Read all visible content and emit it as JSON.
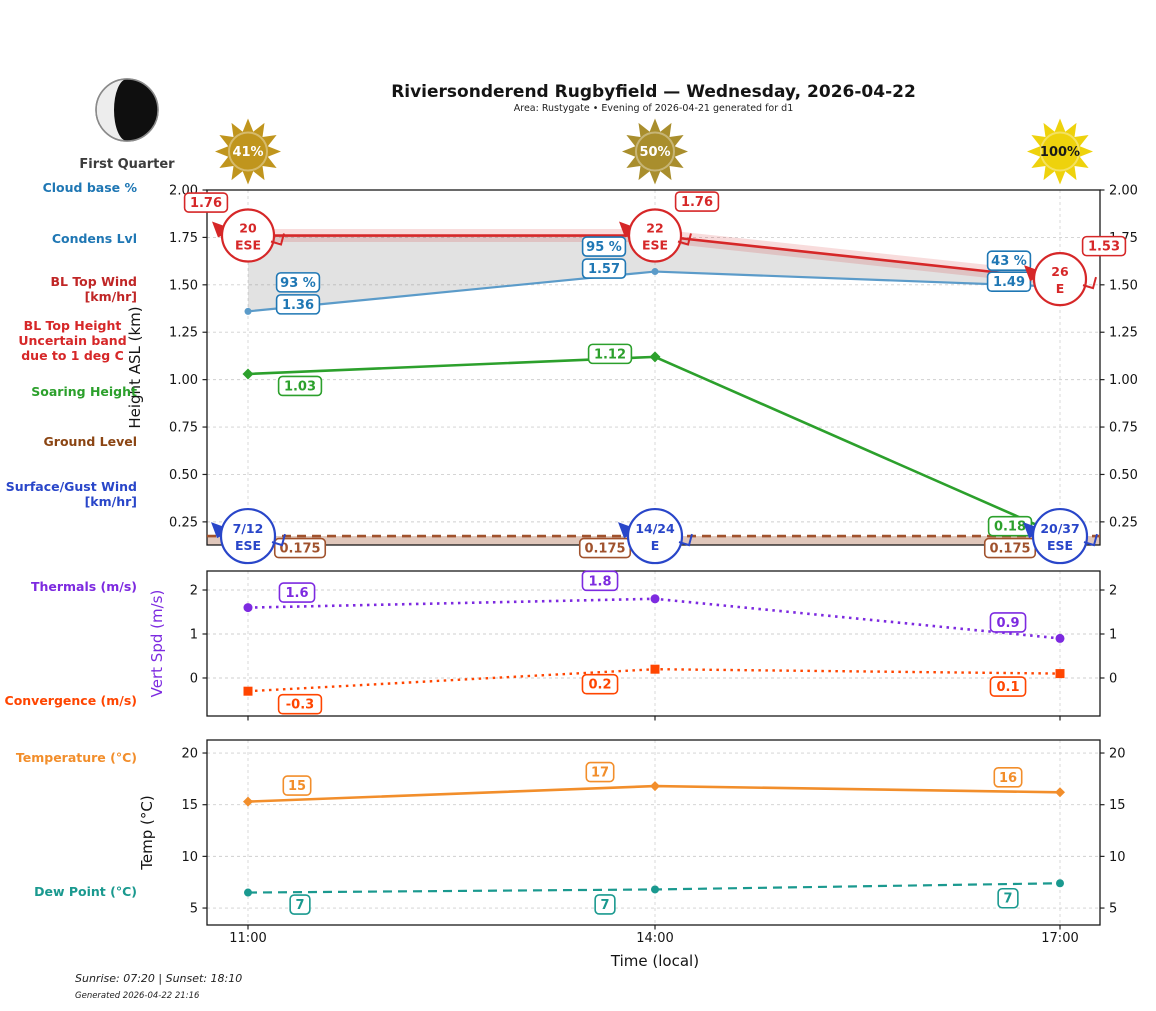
{
  "header": {
    "title": "Riviersonderend Rugbyfield — Wednesday, 2026-04-22",
    "subtitle": "Area: Rustygate • Evening of 2026-04-21 generated for d1"
  },
  "moon": {
    "phase_label": "First Quarter"
  },
  "suns": [
    {
      "percent": "41%",
      "color": "#c0951d",
      "text_color": "#ffffff"
    },
    {
      "percent": "50%",
      "color": "#a98e2d",
      "text_color": "#ffffff"
    },
    {
      "percent": "100%",
      "color": "#eed20c",
      "text_color": "#1a1a1a"
    }
  ],
  "left_labels": [
    {
      "id": "cloud-base",
      "text": "Cloud base %",
      "color": "#1f77b4"
    },
    {
      "id": "condens-lvl",
      "text": "Condens Lvl",
      "color": "#1f77b4"
    },
    {
      "id": "bl-top-wind",
      "text": "BL Top Wind\n[km/hr]",
      "color": "#c02626"
    },
    {
      "id": "bl-top-height",
      "text": "BL Top Height\nUncertain band\ndue to 1 deg C",
      "color": "#d62728"
    },
    {
      "id": "soaring-height",
      "text": "Soaring Height",
      "color": "#2ca02c"
    },
    {
      "id": "ground-level",
      "text": "Ground Level",
      "color": "#8b4513"
    },
    {
      "id": "surface-wind",
      "text": "Surface/Gust Wind\n[km/hr]",
      "color": "#2946c9"
    },
    {
      "id": "thermals",
      "text": "Thermals (m/s)",
      "color": "#7d2ae0"
    },
    {
      "id": "convergence",
      "text": "Convergence (m/s)",
      "color": "#ff4500"
    },
    {
      "id": "temperature",
      "text": "Temperature (°C)",
      "color": "#f28e2b"
    },
    {
      "id": "dew-point",
      "text": "Dew Point (°C)",
      "color": "#1a998f"
    }
  ],
  "time_axis": {
    "ticks": [
      "11:00",
      "14:00",
      "17:00"
    ],
    "label": "Time (local)"
  },
  "footer": {
    "sun_times": "Sunrise: 07:20 | Sunset: 18:10",
    "generated": "Generated 2026-04-22 21:16"
  },
  "chart_data": [
    {
      "type": "line",
      "name": "heights",
      "x": [
        "11:00",
        "14:00",
        "17:00"
      ],
      "ylabel": "Height ASL (km)",
      "ylabel_color": "#141414",
      "ylim": [
        0.128,
        2.0
      ],
      "yticks": [
        0.25,
        0.5,
        0.75,
        1.0,
        1.25,
        1.5,
        1.75,
        2.0
      ],
      "ytick_labels": [
        "0.25",
        "0.50",
        "0.75",
        "1.00",
        "1.25",
        "1.50",
        "1.75",
        "2.00"
      ],
      "grid": true,
      "fill_between": {
        "upper": 0,
        "lower": 1,
        "color": "rgba(125,125,125,0.22)"
      },
      "series": [
        {
          "name": "bl-top-height",
          "color": "#d62728",
          "style": "solid",
          "values": [
            1.76,
            1.76,
            1.53
          ],
          "labels": [
            "1.76",
            "1.76",
            "1.53"
          ],
          "band": true
        },
        {
          "name": "condens-lvl",
          "color": "#1f77b4",
          "line_color": "#5b9bc9",
          "style": "solid",
          "marker": "circle",
          "values": [
            1.36,
            1.57,
            1.49
          ],
          "labels": [
            "1.36",
            "1.57",
            "1.49"
          ],
          "labels2": [
            "93 %",
            "95 %",
            "43 %"
          ]
        },
        {
          "name": "soaring-height",
          "color": "#2ca02c",
          "style": "solid",
          "marker": "diamond",
          "values": [
            1.03,
            1.12,
            0.18
          ],
          "labels": [
            "1.03",
            "1.12",
            "0.18"
          ]
        },
        {
          "name": "ground-level",
          "color": "#a0522d",
          "style": "dashed",
          "values": [
            0.175,
            0.175,
            0.175
          ],
          "labels": [
            "0.175",
            "0.175",
            "0.175"
          ],
          "fill_below": true,
          "full_width": true
        }
      ],
      "wind_markers": {
        "bl": {
          "color": "#d62728",
          "on_series": 0,
          "items": [
            {
              "speed": "20",
              "dir": "ESE"
            },
            {
              "speed": "22",
              "dir": "ESE"
            },
            {
              "speed": "26",
              "dir": "E"
            }
          ]
        },
        "surface": {
          "color": "#2946c9",
          "at_value": 0.175,
          "items": [
            {
              "speed": "7/12",
              "dir": "ESE"
            },
            {
              "speed": "14/24",
              "dir": "E"
            },
            {
              "speed": "20/37",
              "dir": "ESE"
            }
          ]
        }
      }
    },
    {
      "type": "line",
      "name": "vertical-speed",
      "x": [
        "11:00",
        "14:00",
        "17:00"
      ],
      "ylabel": "Vert Spd (m/s)",
      "ylabel_color": "#7d2ae0",
      "ylim": [
        -0.864,
        2.432
      ],
      "yticks": [
        0,
        1,
        2
      ],
      "ytick_labels": [
        "0",
        "1",
        "2"
      ],
      "grid": true,
      "series": [
        {
          "name": "thermals",
          "color": "#7d2ae0",
          "style": "dotted",
          "marker": "circle",
          "values": [
            1.6,
            1.8,
            0.9
          ],
          "labels": [
            "1.6",
            "1.8",
            "0.9"
          ]
        },
        {
          "name": "convergence",
          "color": "#ff4500",
          "style": "dotted",
          "marker": "square",
          "values": [
            -0.3,
            0.2,
            0.1
          ],
          "labels": [
            "-0.3",
            "0.2",
            "0.1"
          ]
        }
      ]
    },
    {
      "type": "line",
      "name": "temperature",
      "x": [
        "11:00",
        "14:00",
        "17:00"
      ],
      "ylabel": "Temp (°C)",
      "ylabel_color": "#141414",
      "ylim": [
        3.36,
        21.26
      ],
      "yticks": [
        5,
        10,
        15,
        20
      ],
      "ytick_labels": [
        "5",
        "10",
        "15",
        "20"
      ],
      "grid": true,
      "series": [
        {
          "name": "temperature",
          "color": "#f28e2b",
          "style": "solid",
          "marker": "diamond",
          "values": [
            15.3,
            16.8,
            16.2
          ],
          "labels": [
            "15",
            "17",
            "16"
          ]
        },
        {
          "name": "dew-point",
          "color": "#1a998f",
          "style": "dashed",
          "marker": "circle",
          "values": [
            6.5,
            6.8,
            7.4
          ],
          "labels": [
            "7",
            "7",
            "7"
          ]
        }
      ]
    }
  ]
}
